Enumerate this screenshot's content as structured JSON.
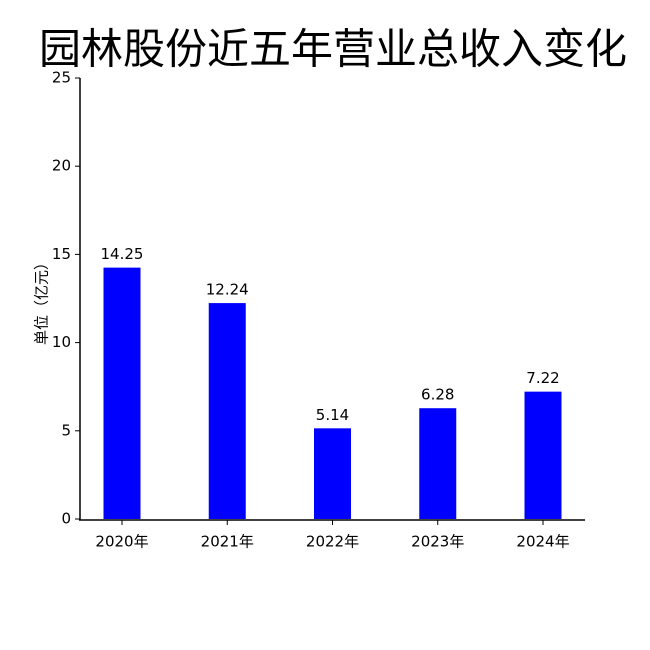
{
  "chart_data": {
    "type": "bar",
    "title": "园林股份近五年营业总收入变化",
    "y_label": "单位（亿元）",
    "categories": [
      "2020年",
      "2021年",
      "2022年",
      "2023年",
      "2024年"
    ],
    "values": [
      14.25,
      12.24,
      5.14,
      6.28,
      7.22
    ],
    "color": "#0000ff",
    "ylim": [
      0,
      25
    ],
    "yticks": [
      0,
      5,
      10,
      15,
      20,
      25
    ],
    "grid": false
  }
}
